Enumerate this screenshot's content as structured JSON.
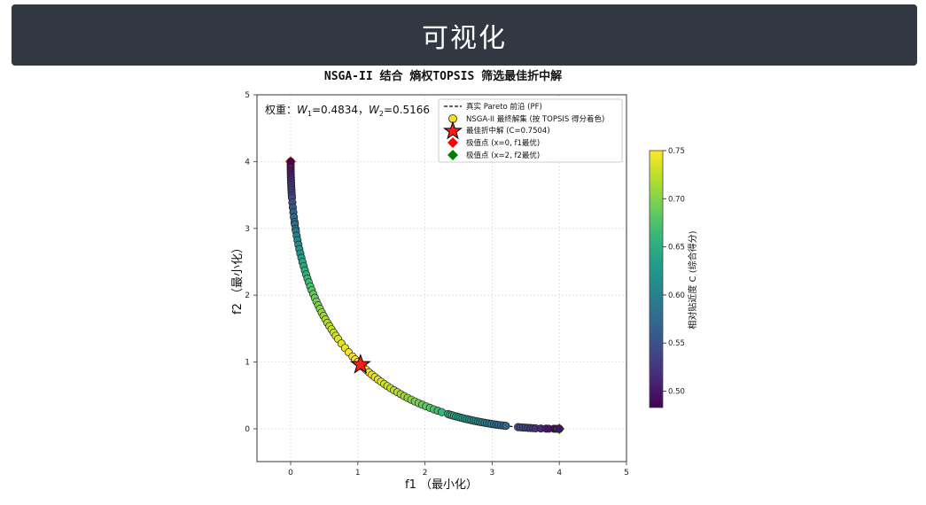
{
  "banner": {
    "title": "可视化"
  },
  "chart_data": {
    "type": "scatter",
    "title": "NSGA-II 结合 熵权TOPSIS 筛选最佳折中解",
    "xlabel": "f1 （最小化）",
    "ylabel": "f2 （最小化）",
    "xlim": [
      -0.5,
      5
    ],
    "ylim": [
      -0.5,
      5
    ],
    "xticks": [
      "0",
      "1",
      "2",
      "3",
      "4",
      "5"
    ],
    "yticks": [
      "0",
      "1",
      "2",
      "3",
      "4",
      "5"
    ],
    "grid": true,
    "annotation": "权重：W1=0.4834，W2=0.5166",
    "weights": {
      "W1": "0.4834",
      "W2": "0.5166"
    },
    "legend": {
      "position": "upper right",
      "entries": [
        "真实 Pareto 前沿 (PF)",
        "NSGA-II 最终解集 (按 TOPSIS 得分着色)",
        "最佳折中解 (C=0.7504)",
        "极值点 (x=0, f1最优)",
        "极值点 (x=2, f2最优)"
      ]
    },
    "pareto_front": "f1 = x^2, f2 = (x-2)^2, x in [0,2]",
    "best_solution": {
      "f1": 1.04,
      "f2": 0.96,
      "C": 0.7504
    },
    "extreme_points": [
      {
        "x": 0,
        "f1": 0,
        "f2": 4,
        "color": "#ff0000"
      },
      {
        "x": 2,
        "f1": 4,
        "f2": 0,
        "color": "#008000"
      }
    ],
    "solutions_x": [
      0.0,
      0.01,
      0.02,
      0.03,
      0.04,
      0.05,
      0.06,
      0.07,
      0.08,
      0.09,
      0.1,
      0.11,
      0.12,
      0.13,
      0.14,
      0.16,
      0.18,
      0.2,
      0.22,
      0.24,
      0.25,
      0.27,
      0.28,
      0.3,
      0.32,
      0.34,
      0.36,
      0.38,
      0.4,
      0.42,
      0.44,
      0.46,
      0.48,
      0.5,
      0.52,
      0.54,
      0.56,
      0.58,
      0.6,
      0.62,
      0.64,
      0.66,
      0.68,
      0.7,
      0.72,
      0.74,
      0.76,
      0.78,
      0.8,
      0.82,
      0.84,
      0.87,
      0.9,
      0.93,
      0.96,
      0.98,
      1.0,
      1.02,
      1.04,
      1.06,
      1.08,
      1.1,
      1.12,
      1.14,
      1.16,
      1.18,
      1.2,
      1.22,
      1.24,
      1.26,
      1.28,
      1.3,
      1.32,
      1.34,
      1.36,
      1.38,
      1.4,
      1.42,
      1.44,
      1.46,
      1.48,
      1.5,
      1.53,
      1.54,
      1.55,
      1.56,
      1.57,
      1.58,
      1.59,
      1.6,
      1.61,
      1.62,
      1.63,
      1.64,
      1.65,
      1.66,
      1.67,
      1.68,
      1.69,
      1.7,
      1.71,
      1.72,
      1.73,
      1.74,
      1.75,
      1.76,
      1.77,
      1.78,
      1.79,
      1.84,
      1.85,
      1.86,
      1.87,
      1.88,
      1.89,
      1.9,
      1.91,
      1.93,
      1.95,
      1.96,
      1.98,
      1.99,
      2.0
    ],
    "colorbar": {
      "label": "相对贴近度 C (综合得分)",
      "min": 0.483,
      "max": 0.75,
      "ticks": [
        "0.50",
        "0.55",
        "0.60",
        "0.65",
        "0.70",
        "0.75"
      ],
      "colormap": "viridis"
    }
  }
}
